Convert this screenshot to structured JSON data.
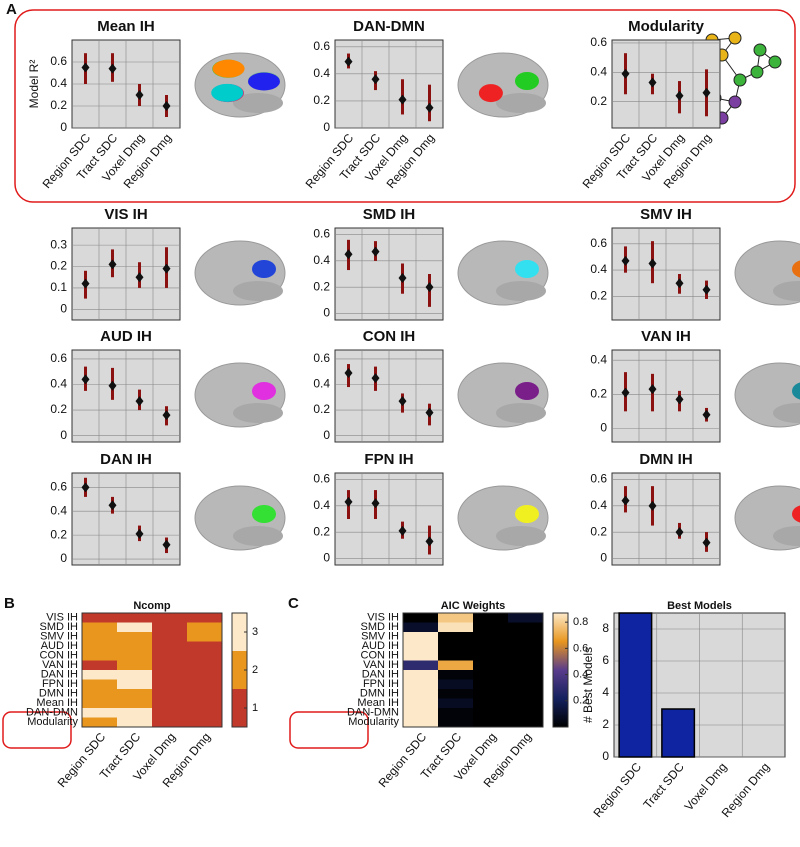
{
  "panels": [
    "A",
    "B",
    "C"
  ],
  "chart_data": [
    {
      "type": "errorbar",
      "title": "Mean IH",
      "ylabel": "Model R²",
      "categories": [
        "Region SDC",
        "Tract SDC",
        "Voxel Dmg",
        "Region Dmg"
      ],
      "values": [
        0.55,
        0.54,
        0.3,
        0.2
      ],
      "lower": [
        0.4,
        0.42,
        0.2,
        0.1
      ],
      "upper": [
        0.68,
        0.68,
        0.4,
        0.3
      ],
      "ylim": [
        0,
        0.8
      ],
      "yticks": [
        0,
        0.2,
        0.4,
        0.6
      ],
      "grid": true,
      "color": "#8b1010"
    },
    {
      "type": "errorbar",
      "title": "DAN-DMN",
      "categories": [
        "Region SDC",
        "Tract SDC",
        "Voxel Dmg",
        "Region Dmg"
      ],
      "values": [
        0.49,
        0.36,
        0.21,
        0.15
      ],
      "lower": [
        0.44,
        0.28,
        0.1,
        0.05
      ],
      "upper": [
        0.55,
        0.42,
        0.36,
        0.32
      ],
      "ylim": [
        0,
        0.65
      ],
      "yticks": [
        0,
        0.2,
        0.4,
        0.6
      ],
      "grid": true,
      "color": "#8b1010"
    },
    {
      "type": "errorbar",
      "title": "Modularity",
      "categories": [
        "Region SDC",
        "Tract SDC",
        "Voxel Dmg",
        "Region Dmg"
      ],
      "values": [
        0.39,
        0.33,
        0.24,
        0.26
      ],
      "lower": [
        0.25,
        0.25,
        0.12,
        0.1
      ],
      "upper": [
        0.53,
        0.39,
        0.34,
        0.42
      ],
      "ylim": [
        0.02,
        0.62
      ],
      "yticks": [
        0.2,
        0.4,
        0.6
      ],
      "grid": true,
      "color": "#8b1010"
    },
    {
      "type": "errorbar",
      "title": "VIS IH",
      "values": [
        0.12,
        0.21,
        0.15,
        0.19
      ],
      "lower": [
        0.05,
        0.15,
        0.1,
        0.1
      ],
      "upper": [
        0.18,
        0.28,
        0.22,
        0.29
      ],
      "ylim": [
        -0.05,
        0.38
      ],
      "yticks": [
        0,
        0.1,
        0.2,
        0.3
      ],
      "grid": true,
      "color": "#8b1010"
    },
    {
      "type": "errorbar",
      "title": "SMD IH",
      "values": [
        0.45,
        0.47,
        0.27,
        0.2
      ],
      "lower": [
        0.33,
        0.4,
        0.15,
        0.05
      ],
      "upper": [
        0.56,
        0.55,
        0.38,
        0.3
      ],
      "ylim": [
        -0.05,
        0.65
      ],
      "yticks": [
        0,
        0.2,
        0.4,
        0.6
      ],
      "grid": true,
      "color": "#8b1010"
    },
    {
      "type": "errorbar",
      "title": "SMV IH",
      "values": [
        0.47,
        0.45,
        0.3,
        0.25
      ],
      "lower": [
        0.38,
        0.3,
        0.22,
        0.18
      ],
      "upper": [
        0.58,
        0.62,
        0.37,
        0.32
      ],
      "ylim": [
        0.02,
        0.72
      ],
      "yticks": [
        0.2,
        0.4,
        0.6
      ],
      "grid": true,
      "color": "#8b1010"
    },
    {
      "type": "errorbar",
      "title": "AUD IH",
      "values": [
        0.44,
        0.39,
        0.27,
        0.16
      ],
      "lower": [
        0.35,
        0.28,
        0.2,
        0.08
      ],
      "upper": [
        0.54,
        0.53,
        0.36,
        0.23
      ],
      "ylim": [
        -0.05,
        0.67
      ],
      "yticks": [
        0,
        0.2,
        0.4,
        0.6
      ],
      "grid": true,
      "color": "#8b1010"
    },
    {
      "type": "errorbar",
      "title": "CON IH",
      "values": [
        0.49,
        0.45,
        0.27,
        0.18
      ],
      "lower": [
        0.38,
        0.35,
        0.18,
        0.08
      ],
      "upper": [
        0.56,
        0.54,
        0.33,
        0.25
      ],
      "ylim": [
        -0.05,
        0.67
      ],
      "yticks": [
        0,
        0.2,
        0.4,
        0.6
      ],
      "grid": true,
      "color": "#8b1010"
    },
    {
      "type": "errorbar",
      "title": "VAN IH",
      "values": [
        0.21,
        0.23,
        0.17,
        0.08
      ],
      "lower": [
        0.1,
        0.1,
        0.1,
        0.04
      ],
      "upper": [
        0.33,
        0.32,
        0.22,
        0.12
      ],
      "ylim": [
        -0.08,
        0.46
      ],
      "yticks": [
        0,
        0.2,
        0.4
      ],
      "grid": true,
      "color": "#8b1010"
    },
    {
      "type": "errorbar",
      "title": "DAN IH",
      "values": [
        0.6,
        0.45,
        0.21,
        0.12
      ],
      "lower": [
        0.52,
        0.38,
        0.15,
        0.05
      ],
      "upper": [
        0.68,
        0.52,
        0.28,
        0.18
      ],
      "ylim": [
        -0.05,
        0.72
      ],
      "yticks": [
        0,
        0.2,
        0.4,
        0.6
      ],
      "grid": true,
      "color": "#8b1010"
    },
    {
      "type": "errorbar",
      "title": "FPN IH",
      "values": [
        0.43,
        0.42,
        0.21,
        0.13
      ],
      "lower": [
        0.3,
        0.3,
        0.15,
        0.03
      ],
      "upper": [
        0.52,
        0.52,
        0.28,
        0.25
      ],
      "ylim": [
        -0.05,
        0.65
      ],
      "yticks": [
        0,
        0.2,
        0.4,
        0.6
      ],
      "grid": true,
      "color": "#8b1010"
    },
    {
      "type": "errorbar",
      "title": "DMN IH",
      "values": [
        0.44,
        0.4,
        0.2,
        0.12
      ],
      "lower": [
        0.35,
        0.25,
        0.15,
        0.05
      ],
      "upper": [
        0.55,
        0.55,
        0.27,
        0.2
      ],
      "ylim": [
        -0.05,
        0.65
      ],
      "yticks": [
        0,
        0.2,
        0.4,
        0.6
      ],
      "grid": true,
      "color": "#8b1010"
    },
    {
      "type": "heatmap",
      "title": "Ncomp",
      "x_categories": [
        "Region SDC",
        "Tract SDC",
        "Voxel Dmg",
        "Region Dmg"
      ],
      "y_categories": [
        "VIS IH",
        "SMD IH",
        "SMV IH",
        "AUD IH",
        "CON IH",
        "VAN IH",
        "DAN IH",
        "FPN IH",
        "DMN IH",
        "Mean IH",
        "DAN-DMN",
        "Modularity"
      ],
      "values": [
        [
          1,
          1,
          1,
          1
        ],
        [
          2,
          3,
          1,
          2
        ],
        [
          2,
          2,
          1,
          2
        ],
        [
          2,
          2,
          1,
          1
        ],
        [
          2,
          2,
          1,
          1
        ],
        [
          1,
          2,
          1,
          1
        ],
        [
          3,
          3,
          1,
          1
        ],
        [
          2,
          3,
          1,
          1
        ],
        [
          2,
          2,
          1,
          1
        ],
        [
          2,
          2,
          1,
          1
        ],
        [
          3,
          3,
          1,
          1
        ],
        [
          2,
          3,
          1,
          1
        ]
      ],
      "clim": [
        0.5,
        3.5
      ],
      "colorbar_ticks": [
        1,
        2,
        3
      ],
      "colors": [
        "#c0392b",
        "#e8961e",
        "#fde9c9"
      ]
    },
    {
      "type": "heatmap",
      "title": "AIC Weights",
      "x_categories": [
        "Region SDC",
        "Tract SDC",
        "Voxel Dmg",
        "Region Dmg"
      ],
      "y_categories": [
        "VIS IH",
        "SMD IH",
        "SMV IH",
        "AUD IH",
        "CON IH",
        "VAN IH",
        "DAN IH",
        "FPN IH",
        "DMN IH",
        "Mean IH",
        "DAN-DMN",
        "Modularity"
      ],
      "values": [
        [
          0,
          0.78,
          0,
          0.1
        ],
        [
          0.1,
          0.85,
          0,
          0
        ],
        [
          0.95,
          0,
          0,
          0
        ],
        [
          0.95,
          0,
          0,
          0
        ],
        [
          0.95,
          0,
          0,
          0
        ],
        [
          0.3,
          0.7,
          0,
          0
        ],
        [
          0.95,
          0.02,
          0,
          0
        ],
        [
          0.9,
          0.08,
          0,
          0
        ],
        [
          0.95,
          0.02,
          0,
          0
        ],
        [
          0.9,
          0.08,
          0,
          0
        ],
        [
          0.95,
          0.02,
          0,
          0
        ],
        [
          0.95,
          0.02,
          0,
          0
        ]
      ],
      "clim": [
        0,
        0.87
      ],
      "colorbar_ticks": [
        0.2,
        0.4,
        0.6,
        0.8
      ],
      "colormap": [
        "#000000",
        "#14215e",
        "#5a3c8c",
        "#e8961e",
        "#fde9c9"
      ]
    },
    {
      "type": "bar",
      "title": "Best Models",
      "ylabel": "# Best Models",
      "categories": [
        "Region SDC",
        "Tract SDC",
        "Voxel Dmg",
        "Region Dmg"
      ],
      "values": [
        9,
        3,
        0,
        0
      ],
      "ylim": [
        0,
        9
      ],
      "yticks": [
        0,
        2,
        4,
        6,
        8
      ],
      "grid": true,
      "color": "#0f24a0"
    }
  ]
}
